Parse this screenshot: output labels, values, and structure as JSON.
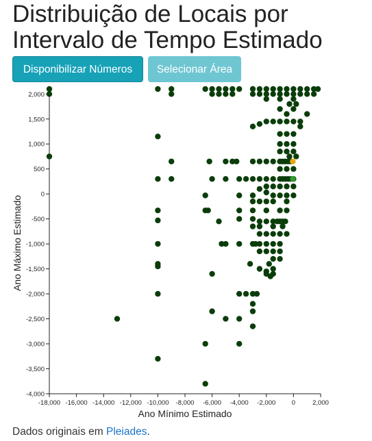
{
  "page": {
    "title": "Distribuição de Locais por Intervalo de Tempo Estimado",
    "buttons": {
      "show_numbers": "Disponibilizar Números",
      "select_area": "Selecionar Área"
    },
    "footer": {
      "prefix": "Dados originais em ",
      "link": "Pleiades",
      "suffix": "."
    }
  },
  "colors": {
    "point": "#0b3d0b",
    "highlight_orange": "#e6a817",
    "highlight_green": "#2e9e2e",
    "primary_button": "#17a2b8",
    "disabled_button": "#6fc6d3",
    "link": "#1a73c8"
  },
  "chart_data": {
    "type": "scatter",
    "xlabel": "Ano Mínimo Estimado",
    "ylabel": "Ano Máximo Estimado",
    "xlim": [
      -18000,
      2000
    ],
    "ylim": [
      -4000,
      2100
    ],
    "xticks": [
      -18000,
      -16000,
      -14000,
      -12000,
      -10000,
      -8000,
      -6000,
      -4000,
      -2000,
      0,
      2000
    ],
    "yticks": [
      -4000,
      -3500,
      -3000,
      -2500,
      -2000,
      -1500,
      -1000,
      -500,
      0,
      500,
      1000,
      1500,
      2000
    ],
    "tick_labels_x": [
      "-18,000",
      "-16,000",
      "-14,000",
      "-12,000",
      "-10,000",
      "-8,000",
      "-6,000",
      "-4,000",
      "-2,000",
      "0",
      "2,000"
    ],
    "tick_labels_y": [
      "-4,000",
      "-3,500",
      "-3,000",
      "-2,500",
      "-2,000",
      "-1,500",
      "-1,000",
      "-500",
      "0",
      "500",
      "1,000",
      "1,500",
      "2,000"
    ],
    "points": [
      [
        -18000,
        2100
      ],
      [
        -18000,
        2000
      ],
      [
        -18000,
        750
      ],
      [
        -10000,
        2100
      ],
      [
        -10000,
        1150
      ],
      [
        -10000,
        300
      ],
      [
        -10000,
        -330
      ],
      [
        -10000,
        -530
      ],
      [
        -10000,
        -1000
      ],
      [
        -10000,
        -1400
      ],
      [
        -10000,
        -1450
      ],
      [
        -10000,
        -2000
      ],
      [
        -10000,
        -3300
      ],
      [
        -9000,
        2100
      ],
      [
        -9000,
        2000
      ],
      [
        -9000,
        650
      ],
      [
        -9000,
        300
      ],
      [
        -13000,
        -2500
      ],
      [
        -6500,
        2100
      ],
      [
        -6000,
        2100
      ],
      [
        -5500,
        2100
      ],
      [
        -5000,
        2100
      ],
      [
        -4500,
        2100
      ],
      [
        -4000,
        2100
      ],
      [
        -6000,
        2000
      ],
      [
        -5500,
        2000
      ],
      [
        -5000,
        2000
      ],
      [
        -4500,
        2000
      ],
      [
        -6200,
        650
      ],
      [
        -5000,
        650
      ],
      [
        -4500,
        650
      ],
      [
        -4200,
        650
      ],
      [
        -3000,
        650
      ],
      [
        -2500,
        650
      ],
      [
        -6000,
        300
      ],
      [
        -5000,
        300
      ],
      [
        -4000,
        300
      ],
      [
        -3500,
        300
      ],
      [
        -3000,
        300
      ],
      [
        -2500,
        300
      ],
      [
        -2000,
        300
      ],
      [
        -1500,
        300
      ],
      [
        -6500,
        -30
      ],
      [
        -6500,
        -330
      ],
      [
        -6300,
        -330
      ],
      [
        -5500,
        -550
      ],
      [
        -5300,
        -1000
      ],
      [
        -5000,
        -1000
      ],
      [
        -4000,
        -30
      ],
      [
        -4000,
        -330
      ],
      [
        -4000,
        -500
      ],
      [
        -4000,
        -1000
      ],
      [
        -6000,
        -1600
      ],
      [
        -6000,
        -2350
      ],
      [
        -6500,
        -3000
      ],
      [
        -6500,
        -3800
      ],
      [
        -5000,
        -2500
      ],
      [
        -4000,
        -2500
      ],
      [
        -4000,
        -3000
      ],
      [
        -4000,
        -2000
      ],
      [
        -3500,
        -2000
      ],
      [
        -3000,
        -2000
      ],
      [
        -3000,
        -2200
      ],
      [
        -2700,
        -2000
      ],
      [
        -3000,
        -2350
      ],
      [
        -3000,
        -2650
      ],
      [
        -3200,
        -1400
      ],
      [
        -3000,
        -30
      ],
      [
        -3000,
        -150
      ],
      [
        -3000,
        -330
      ],
      [
        -3000,
        -500
      ],
      [
        -3000,
        -650
      ],
      [
        -3000,
        -1000
      ],
      [
        -2800,
        -1000
      ],
      [
        -2500,
        -1000
      ],
      [
        -2000,
        -1000
      ],
      [
        -3000,
        1350
      ],
      [
        -2500,
        1400
      ],
      [
        -2000,
        1450
      ],
      [
        -1500,
        1450
      ],
      [
        -1000,
        1450
      ],
      [
        -500,
        1450
      ],
      [
        0,
        1450
      ],
      [
        500,
        1450
      ],
      [
        -1000,
        1200
      ],
      [
        -500,
        1200
      ],
      [
        0,
        1200
      ],
      [
        500,
        1350
      ],
      [
        1000,
        1600
      ],
      [
        -500,
        1600
      ],
      [
        -1000,
        1700
      ],
      [
        0,
        1700
      ],
      [
        -1000,
        1000
      ],
      [
        -500,
        1000
      ],
      [
        0,
        1000
      ],
      [
        -1000,
        850
      ],
      [
        -500,
        850
      ],
      [
        0,
        850
      ],
      [
        -300,
        750
      ],
      [
        200,
        750
      ],
      [
        -1500,
        650
      ],
      [
        -1000,
        650
      ],
      [
        -800,
        650
      ],
      [
        -600,
        650
      ],
      [
        -400,
        650
      ],
      [
        -200,
        650
      ],
      [
        -2000,
        650
      ],
      [
        -1000,
        500
      ],
      [
        -500,
        500
      ],
      [
        0,
        500
      ],
      [
        -1000,
        300
      ],
      [
        -800,
        300
      ],
      [
        -600,
        300
      ],
      [
        -400,
        300
      ],
      [
        -200,
        300
      ],
      [
        0,
        300
      ],
      [
        -2000,
        150
      ],
      [
        -1500,
        150
      ],
      [
        -1000,
        150
      ],
      [
        -500,
        150
      ],
      [
        0,
        150
      ],
      [
        -2500,
        100
      ],
      [
        -2000,
        30
      ],
      [
        -1500,
        -30
      ],
      [
        -1000,
        -30
      ],
      [
        -500,
        -30
      ],
      [
        0,
        -30
      ],
      [
        -2500,
        -150
      ],
      [
        -2000,
        -150
      ],
      [
        -1500,
        -150
      ],
      [
        -500,
        -150
      ],
      [
        -2000,
        -330
      ],
      [
        -1000,
        -330
      ],
      [
        -500,
        -330
      ],
      [
        -2500,
        -550
      ],
      [
        -2000,
        -550
      ],
      [
        -1500,
        -550
      ],
      [
        -1200,
        -550
      ],
      [
        -1000,
        -550
      ],
      [
        -800,
        -550
      ],
      [
        -600,
        -550
      ],
      [
        -2500,
        -650
      ],
      [
        -1500,
        -650
      ],
      [
        -800,
        -650
      ],
      [
        -2500,
        -800
      ],
      [
        -2000,
        -800
      ],
      [
        -1500,
        -800
      ],
      [
        -1000,
        -800
      ],
      [
        -500,
        -800
      ],
      [
        -1500,
        -1000
      ],
      [
        -1000,
        -1000
      ],
      [
        -2000,
        -1150
      ],
      [
        -1500,
        -1150
      ],
      [
        -1000,
        -1150
      ],
      [
        -2500,
        -1150
      ],
      [
        -1500,
        -1300
      ],
      [
        -1000,
        -1300
      ],
      [
        -2500,
        -1500
      ],
      [
        -1500,
        -1500
      ],
      [
        -2000,
        -1550
      ],
      [
        -1500,
        -1600
      ],
      [
        -2000,
        -1600
      ],
      [
        -1700,
        -1650
      ],
      [
        -1800,
        -1400
      ],
      [
        -3000,
        2100
      ],
      [
        -2500,
        2100
      ],
      [
        -2000,
        2100
      ],
      [
        -1500,
        2100
      ],
      [
        -1000,
        2100
      ],
      [
        -500,
        2100
      ],
      [
        0,
        2100
      ],
      [
        500,
        2100
      ],
      [
        1000,
        2100
      ],
      [
        1500,
        2100
      ],
      [
        1800,
        2100
      ],
      [
        -3000,
        2000
      ],
      [
        -2500,
        2000
      ],
      [
        -2000,
        2000
      ],
      [
        -1500,
        2000
      ],
      [
        -1000,
        2000
      ],
      [
        -500,
        2000
      ],
      [
        0,
        2000
      ],
      [
        500,
        2000
      ],
      [
        1000,
        2000
      ],
      [
        1500,
        2000
      ],
      [
        -2000,
        1900
      ],
      [
        -1000,
        1900
      ],
      [
        0,
        1900
      ],
      [
        -300,
        1800
      ],
      [
        200,
        1800
      ]
    ],
    "highlights": [
      {
        "x": -50,
        "y": 650,
        "color_key": "highlight_orange"
      },
      {
        "x": -50,
        "y": 300,
        "color_key": "highlight_green"
      }
    ]
  }
}
